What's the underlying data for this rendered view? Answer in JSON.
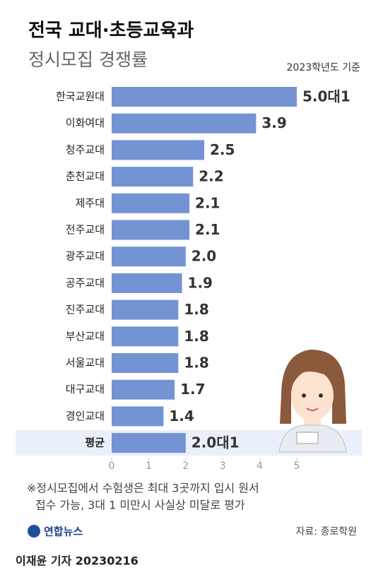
{
  "chart_data": {
    "type": "bar",
    "orientation": "horizontal",
    "title": "전국 교대·초등교육과",
    "subtitle": "정시모집 경쟁률",
    "note": "2023학년도 기준",
    "categories": [
      "한국교원대",
      "이화여대",
      "청주교대",
      "춘천교대",
      "제주대",
      "전주교대",
      "광주교대",
      "공주교대",
      "진주교대",
      "부산교대",
      "서울교대",
      "대구교대",
      "경인교대",
      "평균"
    ],
    "values": [
      5.0,
      3.9,
      2.5,
      2.2,
      2.1,
      2.1,
      2.0,
      1.9,
      1.8,
      1.8,
      1.8,
      1.7,
      1.4,
      2.0
    ],
    "value_labels": [
      "5.0대1",
      "3.9",
      "2.5",
      "2.2",
      "2.1",
      "2.1",
      "2.0",
      "1.9",
      "1.8",
      "1.8",
      "1.8",
      "1.7",
      "1.4",
      "2.0대1"
    ],
    "color": "#7393d3",
    "xlim": [
      0,
      5
    ],
    "xticks": [
      0,
      1,
      2,
      3,
      4,
      5
    ],
    "footnote": [
      "※정시모집에서 수험생은 최대 3곳까지 입시 원서",
      "접수 가능, 3대 1 미만시 사실상 미달로 평가"
    ],
    "logo": "연합뉴스",
    "source": "자료: 종로학원",
    "byline": "이재윤 기자  20230216"
  }
}
